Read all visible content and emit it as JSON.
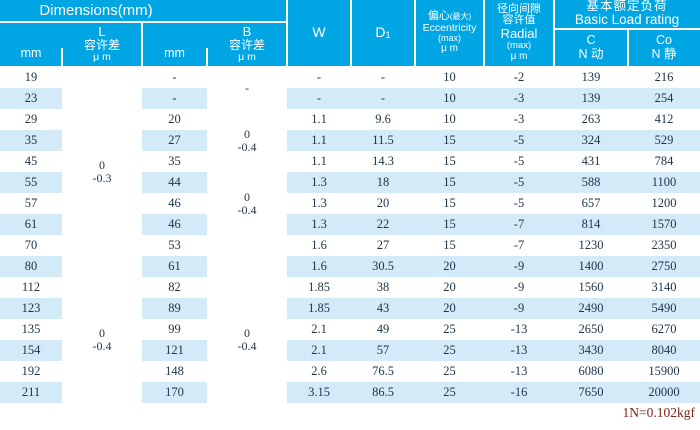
{
  "header": {
    "dimensions_label": "Dimensions(mm)",
    "l_group": {
      "unit": "mm",
      "name": "L",
      "tol_label": "容许差",
      "tol_unit": "μ m"
    },
    "b_group": {
      "unit": "mm",
      "name": "B",
      "tol_label": "容许差",
      "tol_unit": "μ m"
    },
    "w_label": "W",
    "d1_label": "D",
    "d1_subscript": "1",
    "eccentricity": {
      "cn": "偏心",
      "cn_max": "(最大)",
      "en": "Eccentricity",
      "max": "(max)",
      "unit": "μ m"
    },
    "radial": {
      "cn_line1": "径向间隙",
      "cn_line2": "容许值",
      "en": "Radial",
      "max": "(max)",
      "unit": "μ m"
    },
    "load": {
      "cn": "基本额定负荷",
      "en": "Basic Load rating",
      "c_label": "C",
      "c_unit": "N 动",
      "co_label": "Co",
      "co_unit": "N 静"
    }
  },
  "table": {
    "rows": [
      {
        "l": "19",
        "b": "-",
        "w": "-",
        "d1": "-",
        "ecc": "10",
        "radial": "-2",
        "c": "139",
        "co": "216"
      },
      {
        "l": "23",
        "b": "-",
        "w": "-",
        "d1": "-",
        "ecc": "10",
        "radial": "-3",
        "c": "139",
        "co": "254"
      },
      {
        "l": "29",
        "b": "20",
        "w": "1.1",
        "d1": "9.6",
        "ecc": "10",
        "radial": "-3",
        "c": "263",
        "co": "412"
      },
      {
        "l": "35",
        "b": "27",
        "w": "1.1",
        "d1": "11.5",
        "ecc": "15",
        "radial": "-5",
        "c": "324",
        "co": "529"
      },
      {
        "l": "45",
        "b": "35",
        "w": "1.1",
        "d1": "14.3",
        "ecc": "15",
        "radial": "-5",
        "c": "431",
        "co": "784"
      },
      {
        "l": "55",
        "b": "44",
        "w": "1.3",
        "d1": "18",
        "ecc": "15",
        "radial": "-5",
        "c": "588",
        "co": "1100"
      },
      {
        "l": "57",
        "b": "46",
        "w": "1.3",
        "d1": "20",
        "ecc": "15",
        "radial": "-5",
        "c": "657",
        "co": "1200"
      },
      {
        "l": "61",
        "b": "46",
        "w": "1.3",
        "d1": "22",
        "ecc": "15",
        "radial": "-7",
        "c": "814",
        "co": "1570"
      },
      {
        "l": "70",
        "b": "53",
        "w": "1.6",
        "d1": "27",
        "ecc": "15",
        "radial": "-7",
        "c": "1230",
        "co": "2350"
      },
      {
        "l": "80",
        "b": "61",
        "w": "1.6",
        "d1": "30.5",
        "ecc": "20",
        "radial": "-9",
        "c": "1400",
        "co": "2750"
      },
      {
        "l": "112",
        "b": "82",
        "w": "1.85",
        "d1": "38",
        "ecc": "20",
        "radial": "-9",
        "c": "1560",
        "co": "3140"
      },
      {
        "l": "123",
        "b": "89",
        "w": "1.85",
        "d1": "43",
        "ecc": "20",
        "radial": "-9",
        "c": "2490",
        "co": "5490"
      },
      {
        "l": "135",
        "b": "99",
        "w": "2.1",
        "d1": "49",
        "ecc": "25",
        "radial": "-13",
        "c": "2650",
        "co": "6270"
      },
      {
        "l": "154",
        "b": "121",
        "w": "2.1",
        "d1": "57",
        "ecc": "25",
        "radial": "-13",
        "c": "3430",
        "co": "8040"
      },
      {
        "l": "192",
        "b": "148",
        "w": "2.6",
        "d1": "76.5",
        "ecc": "25",
        "radial": "-13",
        "c": "6080",
        "co": "15900"
      },
      {
        "l": "211",
        "b": "170",
        "w": "3.15",
        "d1": "86.5",
        "ecc": "25",
        "radial": "-16",
        "c": "7650",
        "co": "20000"
      }
    ],
    "l_tolerance_groups": [
      {
        "start": 0,
        "span": 10,
        "lines": [
          "0",
          "-0.3"
        ]
      },
      {
        "start": 10,
        "span": 6,
        "lines": [
          "0",
          "-0.4"
        ]
      }
    ],
    "b_tolerance_groups": [
      {
        "start": 0,
        "span": 2,
        "lines": [
          "-"
        ]
      },
      {
        "start": 2,
        "span": 3,
        "lines": [
          "0",
          "-0.4"
        ]
      },
      {
        "start": 5,
        "span": 3,
        "lines": [
          "0",
          "-0.4"
        ]
      },
      {
        "start": 8,
        "span": 2,
        "lines": []
      },
      {
        "start": 10,
        "span": 6,
        "lines": [
          "0",
          "-0.4"
        ]
      }
    ]
  },
  "footer": {
    "note": "1N=0.102kgf"
  },
  "colors": {
    "header_bg": "#00a6e3",
    "stripe": "#d3eaf8",
    "data_text": "#1e3448",
    "header_text": "#ffffff",
    "footer_text": "#7c241a"
  }
}
